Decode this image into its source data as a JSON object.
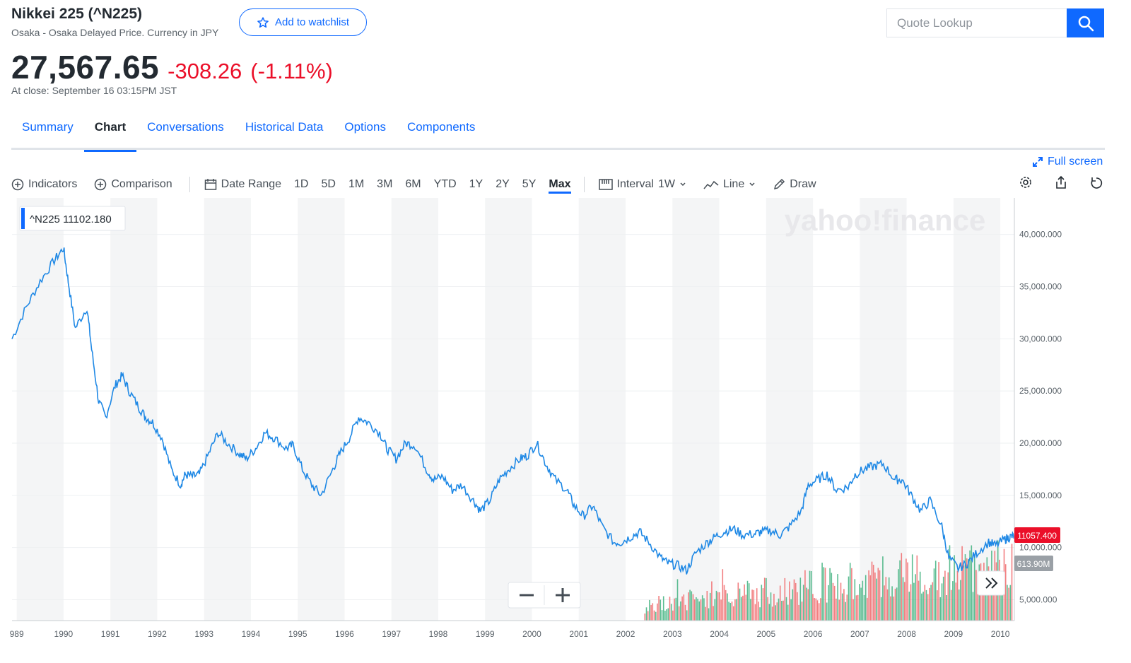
{
  "header": {
    "title": "Nikkei 225 (^N225)",
    "subtitle": "Osaka - Osaka Delayed Price. Currency in JPY",
    "watchlist_label": "Add to watchlist",
    "price": "27,567.65",
    "change": "-308.26",
    "change_pct": "(-1.11%)",
    "close_time": "At close: September 16 03:15PM JST",
    "search_placeholder": "Quote Lookup"
  },
  "tabs": [
    "Summary",
    "Chart",
    "Conversations",
    "Historical Data",
    "Options",
    "Components"
  ],
  "active_tab": "Chart",
  "toolbar": {
    "fullscreen": "Full screen",
    "indicators": "Indicators",
    "comparison": "Comparison",
    "date_range": "Date Range",
    "ranges": [
      "1D",
      "5D",
      "1M",
      "3M",
      "6M",
      "YTD",
      "1Y",
      "2Y",
      "5Y",
      "Max"
    ],
    "active_range": "Max",
    "interval_label": "Interval",
    "interval_value": "1W",
    "chart_type": "Line",
    "draw": "Draw"
  },
  "colors": {
    "accent": "#0f69ff",
    "negative": "#eb0f29",
    "line": "#1e88e5",
    "vol_up": "#3fb27f",
    "vol_down": "#f0696b"
  },
  "chart_data": {
    "type": "line",
    "legend_label": "^N225  11102.180",
    "watermark": "yahoo!finance",
    "last_price_label": "11057.400",
    "volume_label": "613.90M",
    "x_tick_labels": [
      "989",
      "1990",
      "1991",
      "1992",
      "1993",
      "1994",
      "1995",
      "1996",
      "1997",
      "1998",
      "1999",
      "2000",
      "2001",
      "2002",
      "2003",
      "2004",
      "2005",
      "2006",
      "2007",
      "2008",
      "2009",
      "2010"
    ],
    "y_tick_labels": [
      "40,000.000",
      "35,000.000",
      "30,000.000",
      "25,000.000",
      "20,000.000",
      "15,000.000",
      "10,000.000",
      "5,000.000"
    ],
    "ylim": [
      3000,
      43500
    ],
    "xlim": [
      1988.9,
      2010.3
    ],
    "series": [
      {
        "x": [
          1988.9,
          1989.2,
          1989.5,
          1989.8,
          1990.0,
          1990.1,
          1990.25,
          1990.5,
          1990.6,
          1990.75,
          1990.9,
          1991.1,
          1991.25,
          1991.4,
          1991.6,
          1991.75,
          1991.9,
          1992.1,
          1992.3,
          1992.5,
          1992.6,
          1992.75,
          1992.9,
          1993.1,
          1993.3,
          1993.5,
          1993.75,
          1993.9,
          1994.1,
          1994.3,
          1994.5,
          1994.75,
          1994.9,
          1995.1,
          1995.3,
          1995.5,
          1995.75,
          1995.9,
          1996.1,
          1996.3,
          1996.5,
          1996.75,
          1996.9,
          1997.1,
          1997.3,
          1997.5,
          1997.75,
          1997.9,
          1998.1,
          1998.3,
          1998.5,
          1998.75,
          1998.9,
          1999.1,
          1999.3,
          1999.5,
          1999.75,
          1999.9,
          2000.1,
          2000.3,
          2000.5,
          2000.75,
          2000.9,
          2001.1,
          2001.3,
          2001.5,
          2001.75,
          2001.9,
          2002.1,
          2002.3,
          2002.5,
          2002.75,
          2002.9,
          2003.1,
          2003.3,
          2003.5,
          2003.75,
          2003.9,
          2004.1,
          2004.3,
          2004.5,
          2004.75,
          2004.9,
          2005.1,
          2005.3,
          2005.5,
          2005.75,
          2005.9,
          2006.1,
          2006.3,
          2006.5,
          2006.75,
          2006.9,
          2007.1,
          2007.3,
          2007.5,
          2007.75,
          2007.9,
          2008.1,
          2008.3,
          2008.5,
          2008.75,
          2008.9,
          2009.1,
          2009.3,
          2009.5,
          2009.75,
          2009.9,
          2010.1,
          2010.2,
          2010.3
        ],
        "y": [
          30000,
          33000,
          35500,
          37500,
          38700,
          35500,
          31000,
          33000,
          29000,
          24000,
          22500,
          25500,
          26500,
          25000,
          23500,
          22500,
          22000,
          20500,
          17500,
          16000,
          17000,
          16800,
          17000,
          19000,
          21000,
          20000,
          19000,
          18500,
          19500,
          21000,
          20500,
          19500,
          19800,
          17500,
          16000,
          15000,
          17500,
          19000,
          20500,
          22500,
          22000,
          21000,
          19500,
          18500,
          20000,
          19800,
          17500,
          16500,
          16800,
          15500,
          16000,
          14500,
          13500,
          14500,
          16500,
          17500,
          18500,
          18800,
          20000,
          18000,
          16500,
          15500,
          14000,
          13000,
          14000,
          12000,
          10500,
          10500,
          11000,
          11500,
          10500,
          9000,
          8500,
          8300,
          7800,
          9500,
          10500,
          11000,
          11500,
          11800,
          11200,
          11300,
          11500,
          11600,
          11200,
          12000,
          13500,
          16000,
          16500,
          17000,
          15500,
          15800,
          17000,
          17500,
          17800,
          18000,
          16500,
          16500,
          15000,
          13500,
          14500,
          12000,
          9000,
          8000,
          8500,
          9500,
          10500,
          10200,
          10800,
          11000,
          11102
        ]
      }
    ],
    "volume_note": "volume bars shown from 2002.4 onward, up/down colored"
  }
}
